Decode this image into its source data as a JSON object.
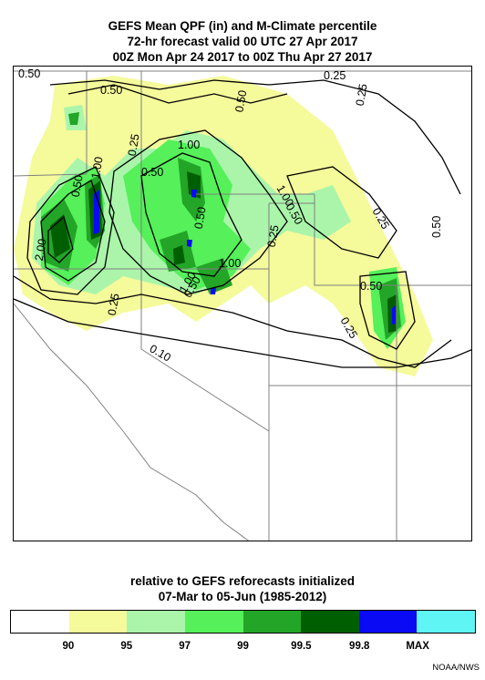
{
  "header": {
    "line1": "GEFS Mean QPF (in) and M-Climate percentile",
    "line2": "72-hr forecast valid 00 UTC 27 Apr 2017",
    "line3": "00Z Mon Apr 24 2017 to 00Z Thu Apr 27 2017"
  },
  "map": {
    "contour_labels": [
      "0.50",
      "0.25",
      "0.50",
      "0.25",
      "0.25",
      "0.50",
      "1.00",
      "1.00",
      "0.50",
      "1.00",
      "1.00",
      "0.50",
      "2.00",
      "0.50",
      "0.25",
      "1.00",
      "0.50",
      "0.25",
      "0.50",
      "0.25",
      "0.50",
      "0.25",
      "0.10",
      "0.50"
    ]
  },
  "footer": {
    "line1": "relative to GEFS reforecasts initialized",
    "line2": "07-Mar to 05-Jun (1985-2012)"
  },
  "colorbar": {
    "colors": [
      "#ffffff",
      "#f5fa9b",
      "#aaf5aa",
      "#55f05a",
      "#23a528",
      "#005f00",
      "#0a0af5",
      "#5ff5f5"
    ],
    "labels": [
      "90",
      "95",
      "97",
      "99",
      "99.5",
      "99.8",
      "MAX"
    ]
  },
  "credit": "NOAA/NWS"
}
